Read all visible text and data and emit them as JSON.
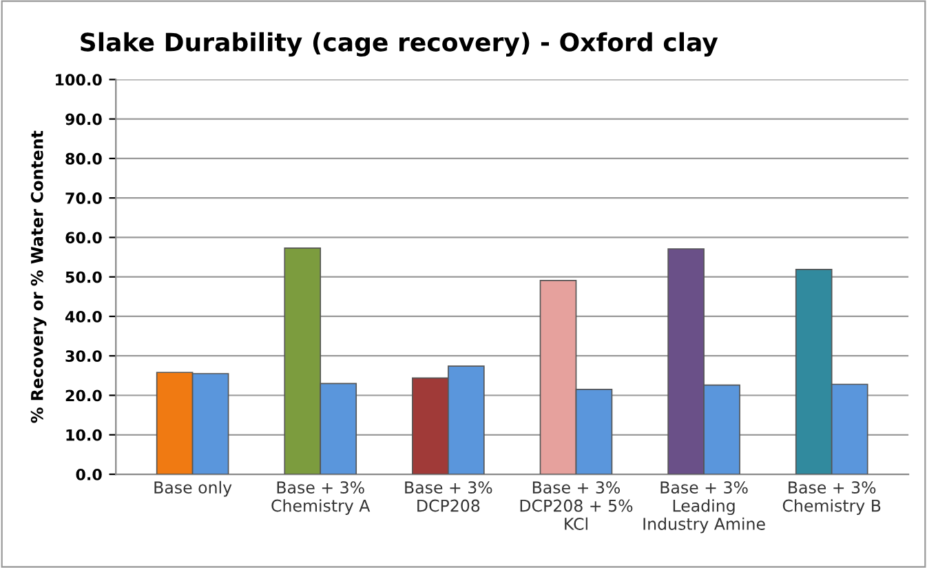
{
  "chart_data": {
    "type": "bar",
    "title": "Slake Durability (cage recovery) - Oxford clay",
    "ylabel": "% Recovery or % Water Content",
    "categories": [
      "Base only",
      "Base + 3%\nChemistry A",
      "Base + 3%\nDCP208",
      "Base + 3%\nDCP208 + 5%\nKCl",
      "Base + 3%\nLeading\nIndustry Amine",
      "Base + 3%\nChemistry B"
    ],
    "series": [
      {
        "colors": [
          "#f07a12",
          "#7c9c3e",
          "#a03a38",
          "#e6a19d",
          "#6a5088",
          "#318a9e"
        ],
        "values": [
          25.8,
          57.3,
          24.4,
          49.1,
          57.1,
          51.9
        ]
      },
      {
        "color": "#5a96dc",
        "values": [
          25.5,
          23.0,
          27.4,
          21.5,
          22.6,
          22.8
        ]
      }
    ],
    "ylim": [
      0,
      100
    ],
    "yticks": [
      {
        "value": 0,
        "label": "0.0"
      },
      {
        "value": 10,
        "label": "10.0"
      },
      {
        "value": 20,
        "label": "20.0"
      },
      {
        "value": 30,
        "label": "30.0"
      },
      {
        "value": 40,
        "label": "40.0"
      },
      {
        "value": 50,
        "label": "50.0"
      },
      {
        "value": 60,
        "label": "60.0"
      },
      {
        "value": 70,
        "label": "70.0"
      },
      {
        "value": 80,
        "label": "80.0"
      },
      {
        "value": 90,
        "label": "90.0"
      },
      {
        "value": 100,
        "label": "100.0"
      }
    ],
    "grid": "y",
    "legend": false
  }
}
